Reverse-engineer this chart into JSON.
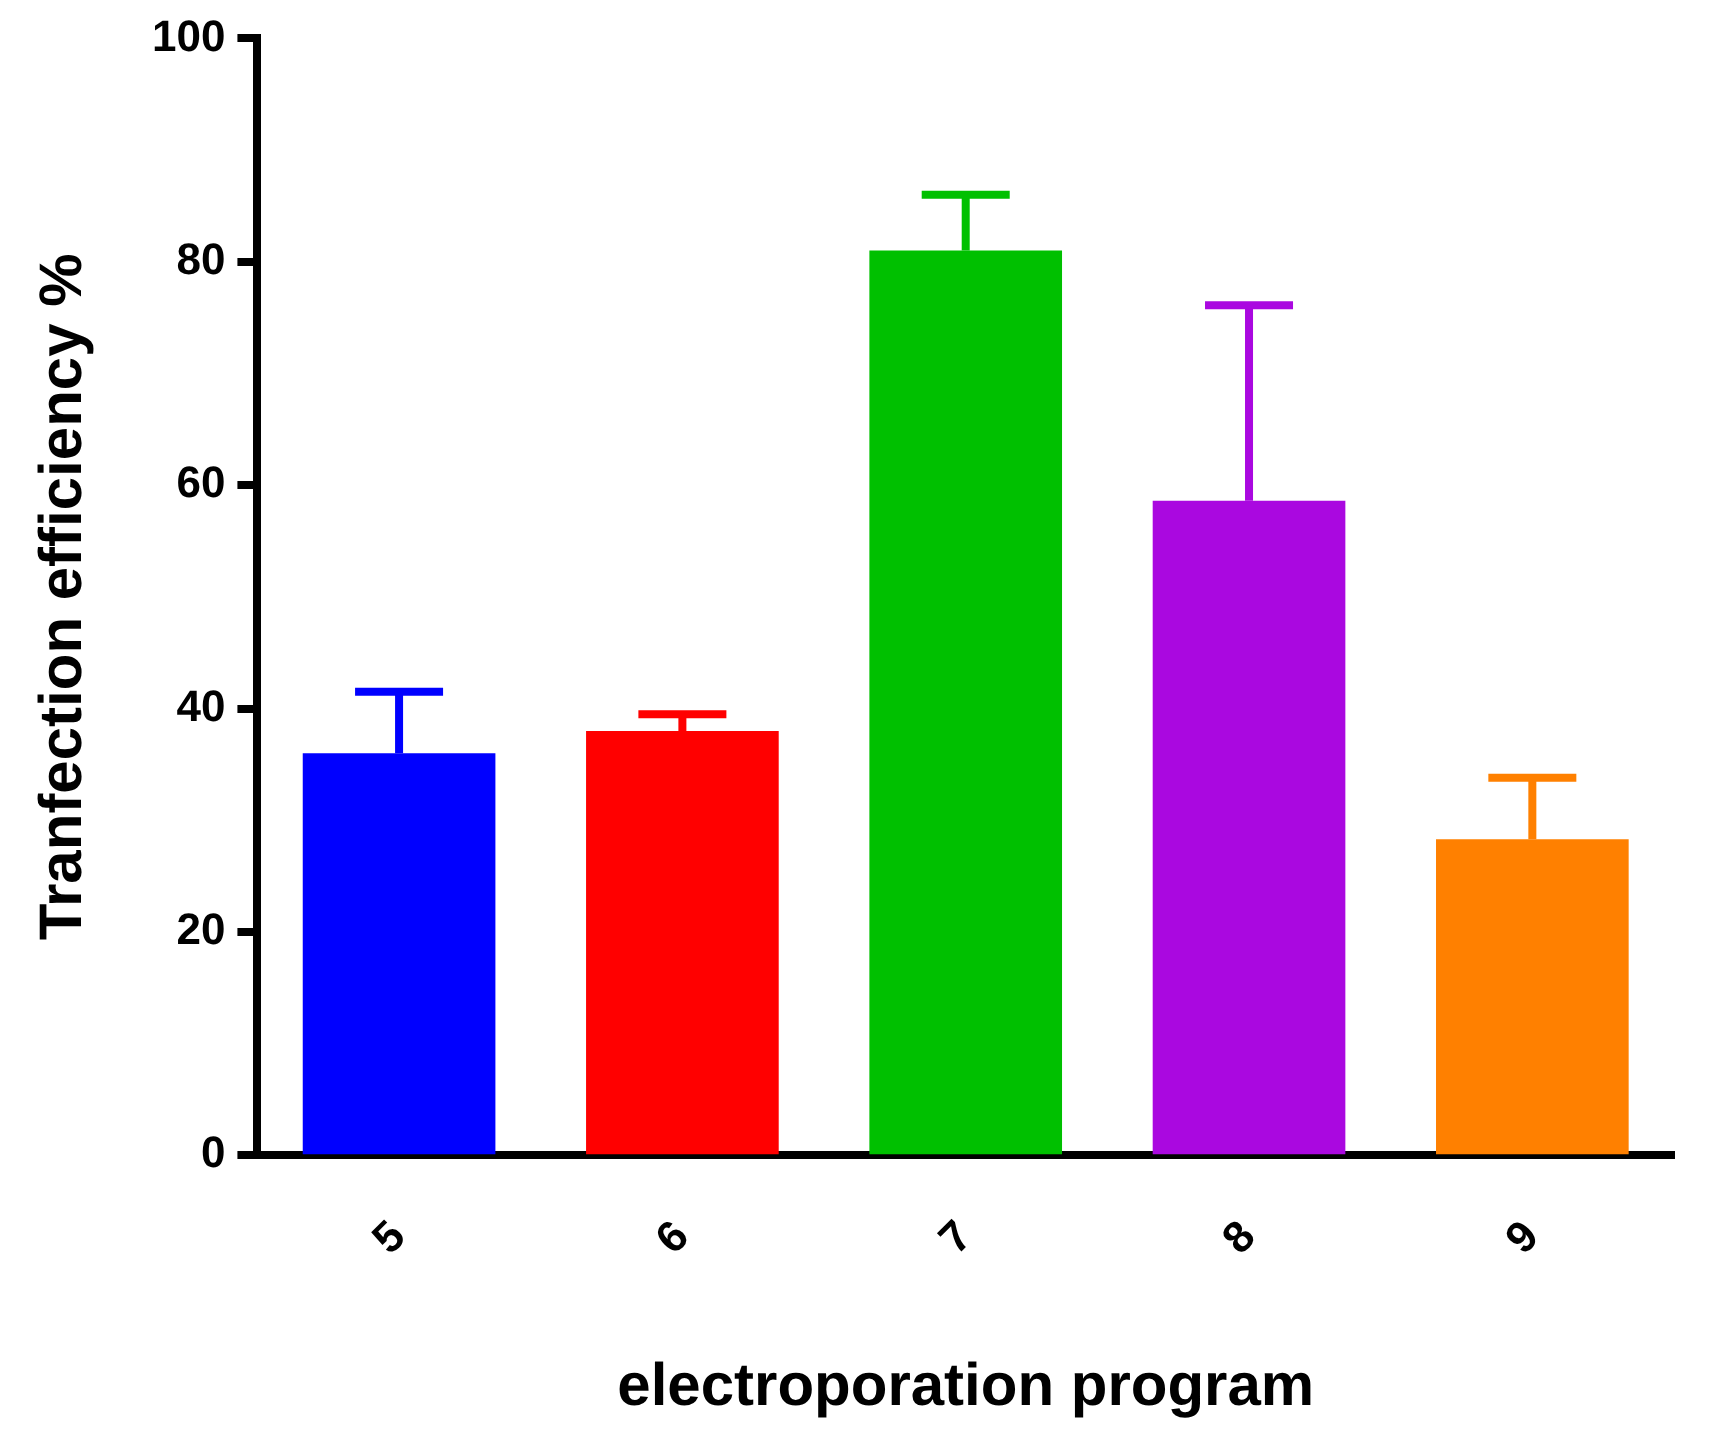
{
  "chart_data": {
    "type": "bar",
    "xlabel": "electroporation program",
    "ylabel": "Tranfection efficiency %",
    "categories": [
      "5",
      "6",
      "7",
      "8",
      "9"
    ],
    "values": [
      36,
      38,
      81,
      58.6,
      28.3
    ],
    "errors": [
      [
        36,
        41.5
      ],
      [
        38,
        39.5
      ],
      [
        81,
        86
      ],
      [
        58.6,
        76.1
      ],
      [
        28.3,
        33.8
      ]
    ],
    "colors": [
      "#0000ff",
      "#ff0000",
      "#00c000",
      "#aa08e0",
      "#ff8000"
    ],
    "ylim": [
      0,
      100
    ],
    "yticks": [
      0,
      20,
      40,
      60,
      80,
      100
    ],
    "grid": false,
    "legend": false
  }
}
